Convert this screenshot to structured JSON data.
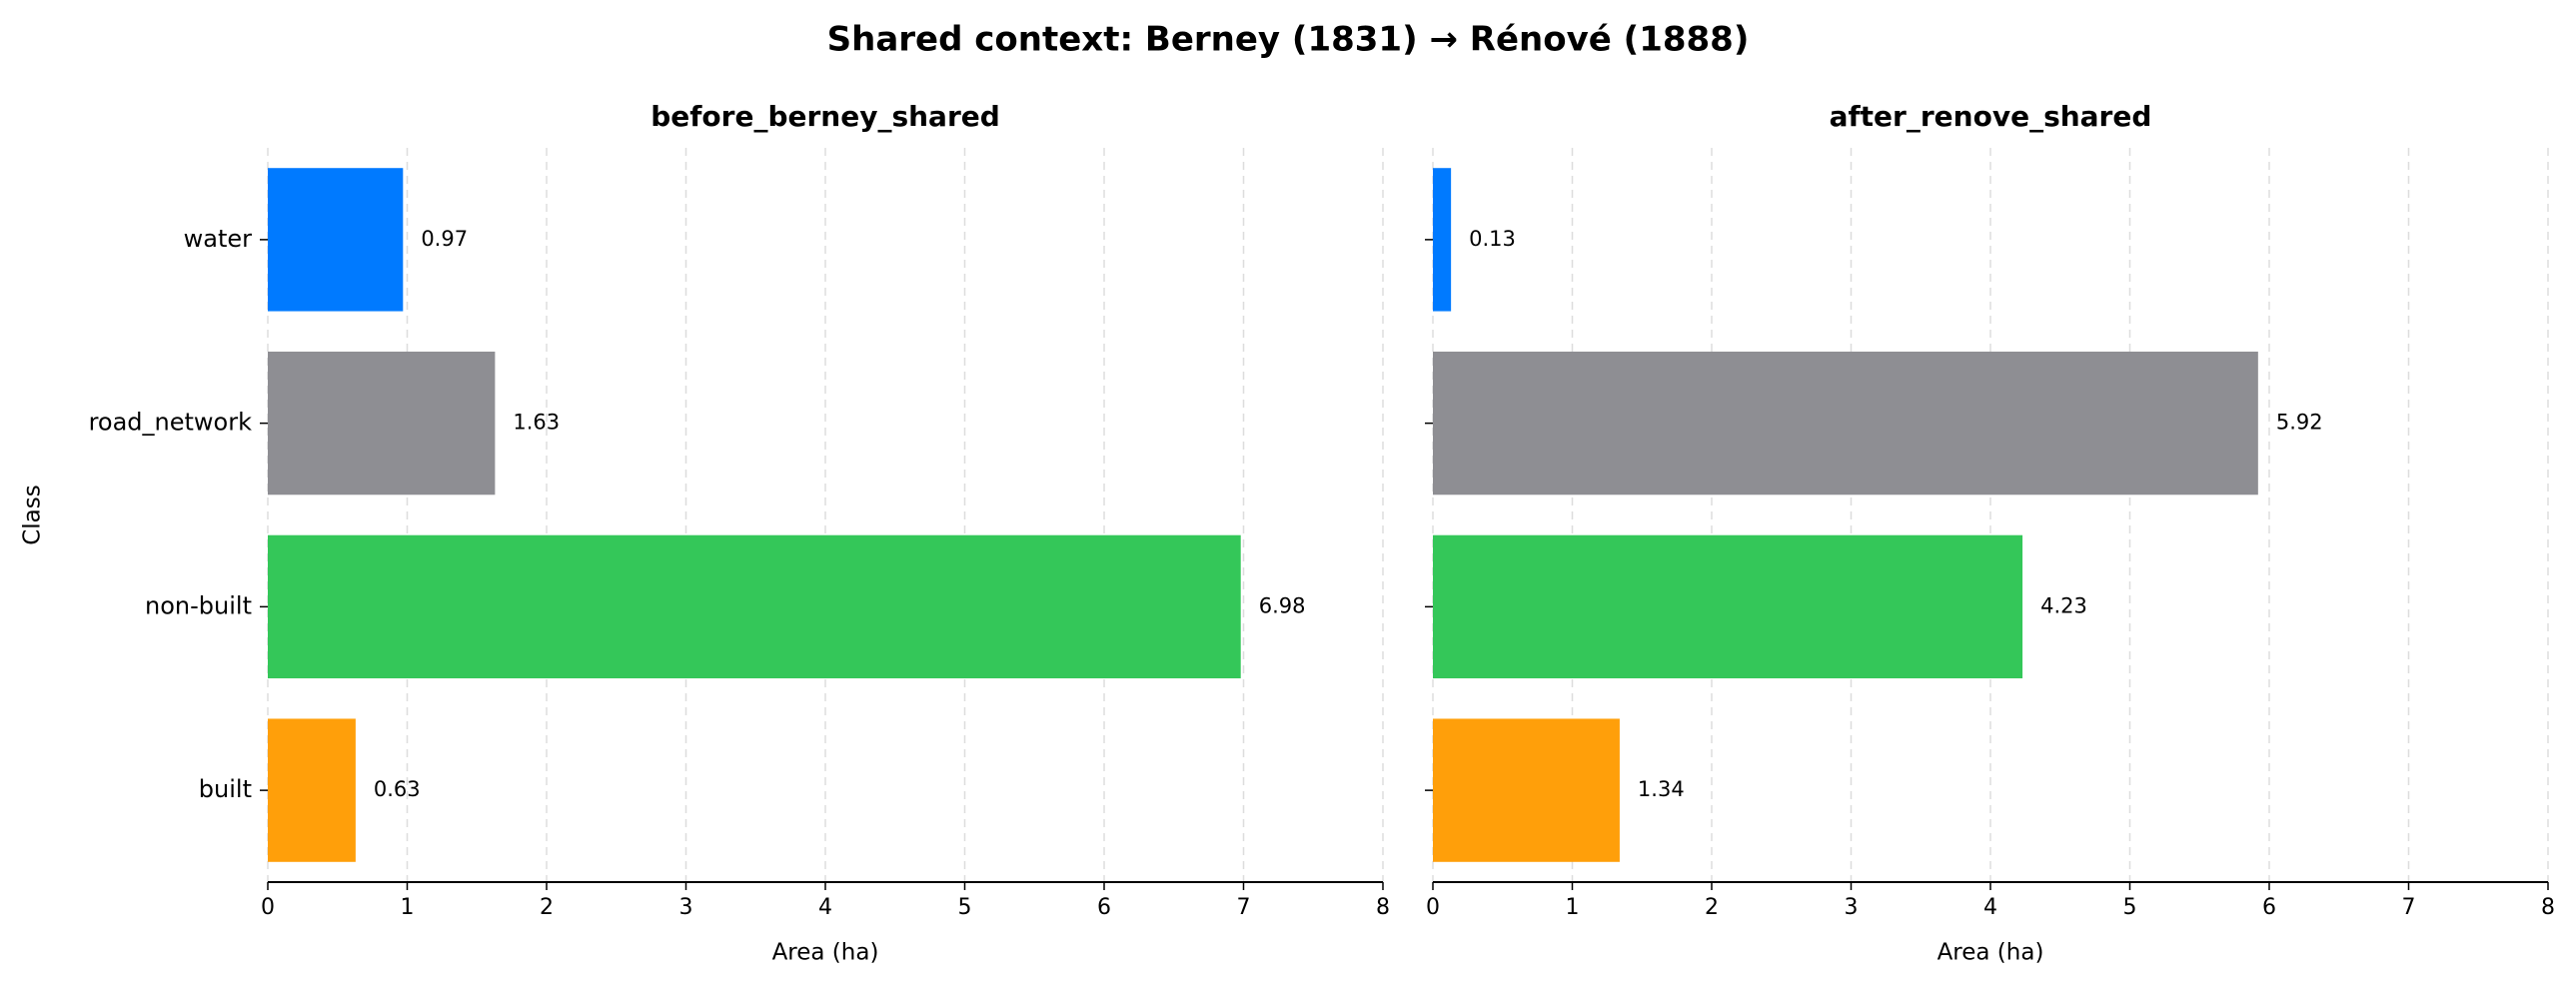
{
  "title": "Shared context: Berney (1831) → Rénové (1888)",
  "chart_data": [
    {
      "type": "bar",
      "orientation": "horizontal",
      "title": "before_berney_shared",
      "xlabel": "Area (ha)",
      "ylabel": "Class",
      "categories": [
        "water",
        "road_network",
        "non-built",
        "built"
      ],
      "values": [
        0.97,
        1.63,
        6.98,
        0.63
      ],
      "colors": [
        "#007aff",
        "#8e8e93",
        "#34c759",
        "#ff9f0a"
      ],
      "xlim": [
        0,
        8
      ],
      "xticks": [
        0,
        1,
        2,
        3,
        4,
        5,
        6,
        7,
        8
      ],
      "grid": true
    },
    {
      "type": "bar",
      "orientation": "horizontal",
      "title": "after_renove_shared",
      "xlabel": "Area (ha)",
      "categories": [
        null,
        null,
        null,
        null
      ],
      "values": [
        0.13,
        5.92,
        4.23,
        1.34
      ],
      "colors": [
        "#007aff",
        "#8e8e93",
        "#34c759",
        "#ff9f0a"
      ],
      "xlim": [
        0,
        8
      ],
      "xticks": [
        0,
        1,
        2,
        3,
        4,
        5,
        6,
        7,
        8
      ],
      "grid": true
    }
  ]
}
